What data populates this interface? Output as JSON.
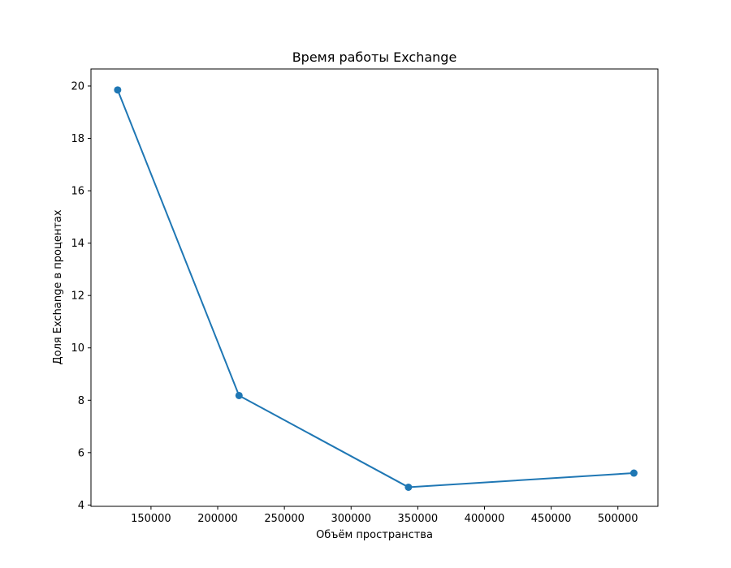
{
  "chart_data": {
    "type": "line",
    "title": "Время работы Exchange",
    "xlabel": "Объём пространства",
    "ylabel": "Доля Exchange в процентах",
    "xlim": [
      105000,
      530000
    ],
    "ylim": [
      3.95,
      20.65
    ],
    "xticks": [
      150000,
      200000,
      250000,
      300000,
      350000,
      400000,
      450000,
      500000
    ],
    "yticks": [
      4,
      6,
      8,
      10,
      12,
      14,
      16,
      18,
      20
    ],
    "grid": false,
    "legend": "none",
    "series": [
      {
        "color": "#1f77b4",
        "marker": "circle",
        "points": [
          {
            "x": 125000,
            "y": 19.85
          },
          {
            "x": 216000,
            "y": 8.18
          },
          {
            "x": 343000,
            "y": 4.68
          },
          {
            "x": 512000,
            "y": 5.22
          }
        ]
      }
    ]
  }
}
